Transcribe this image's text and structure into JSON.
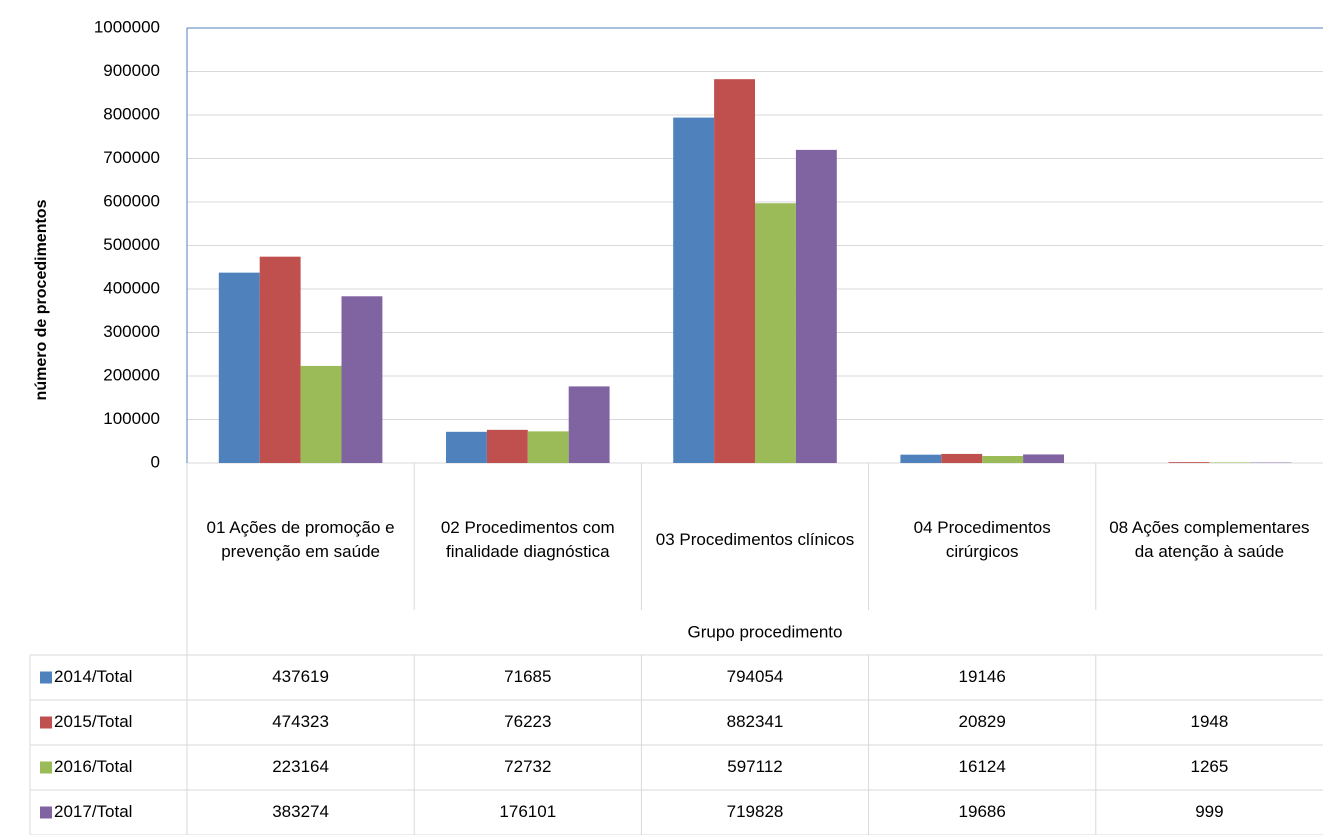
{
  "chart_data": {
    "type": "bar",
    "y_label": "número de procedimentos",
    "x_label": "Grupo procedimento",
    "categories": [
      "01 Ações de promoção e prevenção em saúde",
      "02 Procedimentos com finalidade diagnóstica",
      "03 Procedimentos clínicos",
      "04 Procedimentos cirúrgicos",
      "08 Ações complementares da atenção à saúde"
    ],
    "series": [
      {
        "name": "2014/Total",
        "color": "#4f81bd",
        "values": [
          437619,
          71685,
          794054,
          19146,
          null
        ]
      },
      {
        "name": "2015/Total",
        "color": "#c0504d",
        "values": [
          474323,
          76223,
          882341,
          20829,
          1948
        ]
      },
      {
        "name": "2016/Total",
        "color": "#9bbb59",
        "values": [
          223164,
          72732,
          597112,
          16124,
          1265
        ]
      },
      {
        "name": "2017/Total",
        "color": "#8064a2",
        "values": [
          383274,
          176101,
          719828,
          19686,
          999
        ]
      }
    ],
    "ylim": [
      0,
      1000000
    ],
    "yticks": [
      0,
      100000,
      200000,
      300000,
      400000,
      500000,
      600000,
      700000,
      800000,
      900000,
      1000000
    ],
    "grid": true
  }
}
